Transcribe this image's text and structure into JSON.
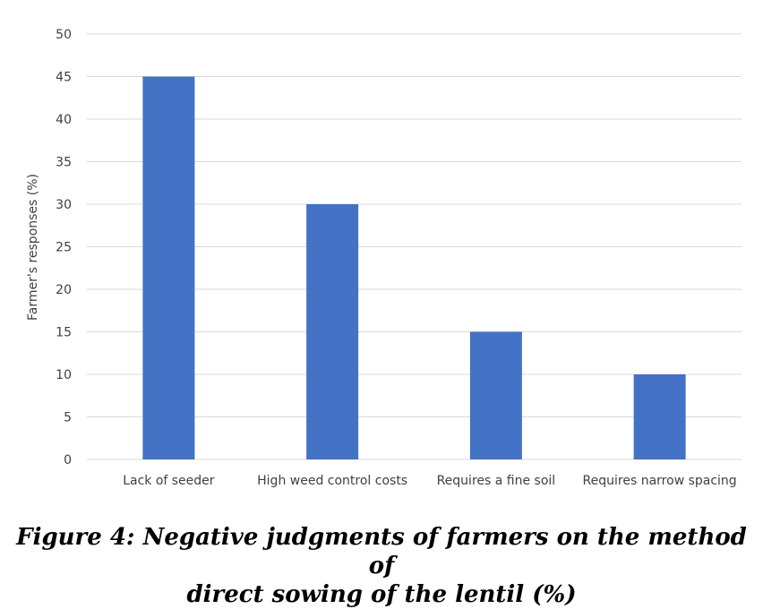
{
  "chart_data": {
    "type": "bar",
    "categories": [
      "Lack of seeder",
      "High weed control costs",
      "Requires a fine soil",
      "Requires narrow spacing"
    ],
    "values": [
      45,
      30,
      15,
      10
    ],
    "title": "",
    "xlabel": "",
    "ylabel": "Farmer's responses (%)",
    "ylim": [
      0,
      50
    ],
    "yticks": [
      0,
      5,
      10,
      15,
      20,
      25,
      30,
      35,
      40,
      45,
      50
    ],
    "grid": true,
    "legend": "none",
    "bar_color": "#4472C4",
    "grid_color": "#D9D9D9"
  },
  "caption": {
    "line1": "Figure 4: Negative judgments of farmers on the method of",
    "line2": "direct sowing of the lentil (%)"
  }
}
